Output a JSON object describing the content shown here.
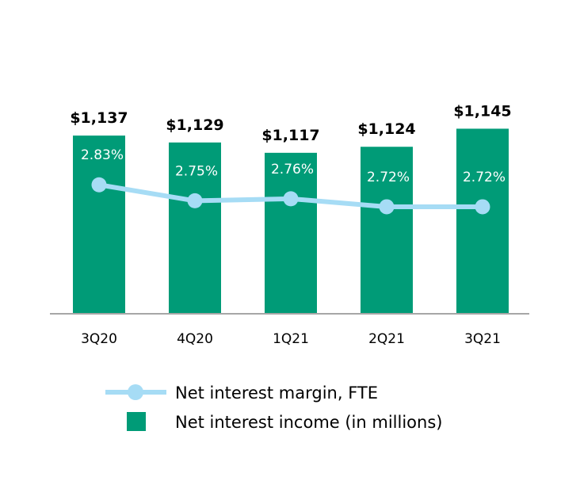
{
  "chart_data": {
    "type": "bar",
    "categories": [
      "3Q20",
      "4Q20",
      "1Q21",
      "2Q21",
      "3Q21"
    ],
    "series": [
      {
        "name": "Net interest income (in millions)",
        "kind": "bar",
        "values": [
          1137,
          1129,
          1117,
          1124,
          1145
        ],
        "labels": [
          "$1,137",
          "$1,129",
          "$1,117",
          "$1,124",
          "$1,145"
        ],
        "color": "#009B77"
      },
      {
        "name": "Net interest margin, FTE",
        "kind": "line",
        "values": [
          2.83,
          2.75,
          2.76,
          2.72,
          2.72
        ],
        "labels": [
          "2.83%",
          "2.75%",
          "2.76%",
          "2.72%",
          "2.72%"
        ],
        "color": "#A6DCF5"
      }
    ],
    "legend": [
      "Net interest margin, FTE",
      "Net interest income (in millions)"
    ],
    "legend_position": "bottom",
    "bar_axis_range": [
      930,
      1150
    ],
    "line_axis_range": [
      2.2,
      3.2
    ],
    "grid": false
  },
  "colors": {
    "baseline": "#A6A6A6",
    "pct_text": "#ffffff"
  }
}
